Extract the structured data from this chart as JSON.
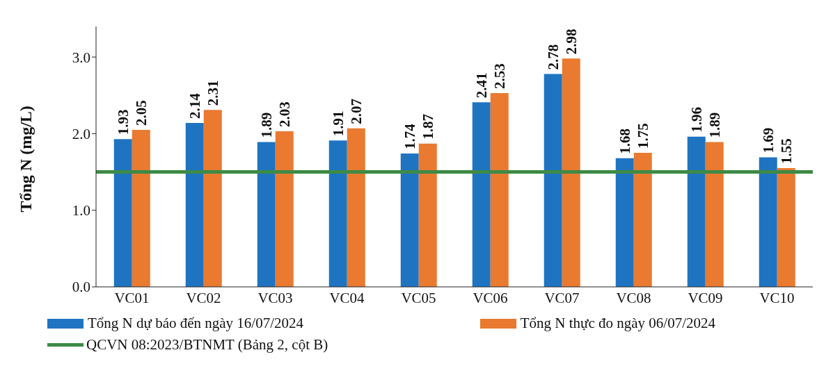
{
  "chart_data": {
    "type": "bar",
    "ylabel": "Tổng N (mg/L)",
    "categories": [
      "VC01",
      "VC02",
      "VC03",
      "VC04",
      "VC05",
      "VC06",
      "VC07",
      "VC08",
      "VC09",
      "VC10"
    ],
    "series": [
      {
        "name": "Tổng N dự báo đến ngày 16/07/2024",
        "color": "#1f74c2",
        "values": [
          1.93,
          2.14,
          1.89,
          1.91,
          1.74,
          2.41,
          2.78,
          1.68,
          1.96,
          1.69
        ]
      },
      {
        "name": "Tổng N thực đo ngày 06/07/2024",
        "color": "#e97a30",
        "values": [
          2.05,
          2.31,
          2.03,
          2.07,
          1.87,
          2.53,
          2.98,
          1.75,
          1.89,
          1.55
        ]
      }
    ],
    "ylim": [
      0,
      3.4
    ],
    "yticks": [
      {
        "value": 0,
        "label": "0.0"
      },
      {
        "value": 1,
        "label": "1.0"
      },
      {
        "value": 2,
        "label": "2.0"
      },
      {
        "value": 3,
        "label": "3.0"
      }
    ],
    "ref_lines": [
      {
        "axis": "y",
        "value": 1.5,
        "label": "QCVN 08:2023/BTNMT (Bảng 2, cột B)",
        "color": "#3d8a46"
      }
    ],
    "data_labels": true,
    "grid": false,
    "legend": "bottom"
  }
}
